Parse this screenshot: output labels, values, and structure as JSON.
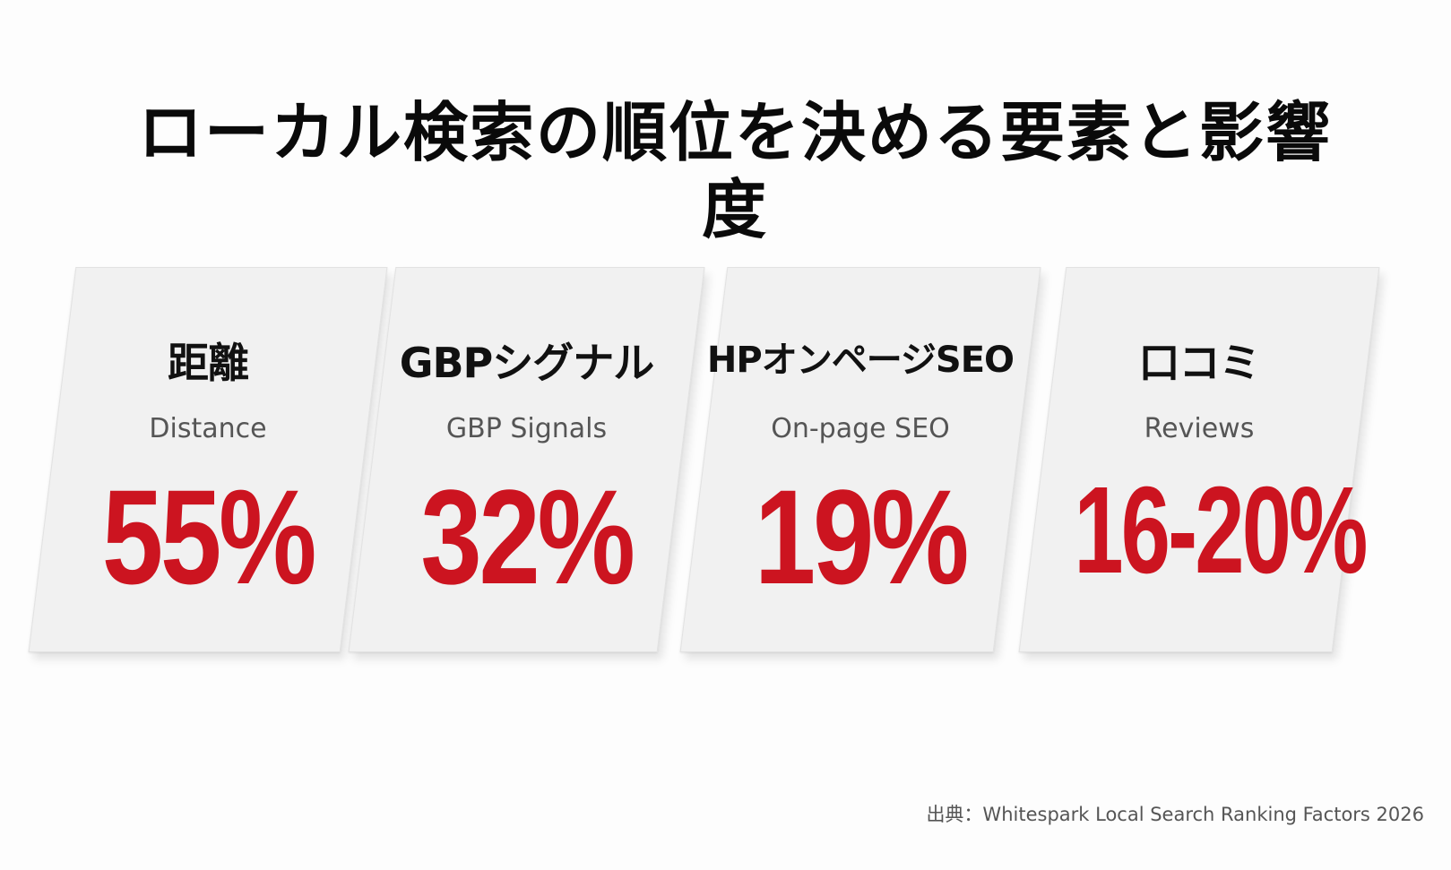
{
  "title": "ローカル検索の順位を決める要素と影響度",
  "accent_color": "#cc1420",
  "cards": [
    {
      "title": "距離",
      "subtitle": "Distance",
      "value": "55%"
    },
    {
      "title": "GBPシグナル",
      "subtitle": "GBP Signals",
      "value": "32%"
    },
    {
      "title": "HPオンページSEO",
      "subtitle": "On-page SEO",
      "value": "19%"
    },
    {
      "title": "口コミ",
      "subtitle": "Reviews",
      "value": "16-20%"
    }
  ],
  "source": "出典：Whitespark Local Search Ranking Factors 2026"
}
